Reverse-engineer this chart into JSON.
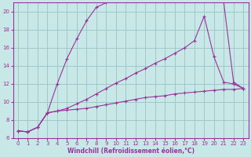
{
  "xlabel": "Windchill (Refroidissement éolien,°C)",
  "bg_color": "#c8e8e8",
  "grid_color": "#a0c8c8",
  "line_color": "#993399",
  "xlim": [
    -0.5,
    23.5
  ],
  "ylim": [
    6,
    21
  ],
  "xticks": [
    0,
    1,
    2,
    3,
    4,
    5,
    6,
    7,
    8,
    9,
    10,
    11,
    12,
    13,
    14,
    15,
    16,
    17,
    18,
    19,
    20,
    21,
    22,
    23
  ],
  "yticks": [
    6,
    8,
    10,
    12,
    14,
    16,
    18,
    20
  ],
  "line1_x": [
    0,
    1,
    2,
    3,
    4,
    5,
    6,
    7,
    8,
    9,
    10,
    11,
    12,
    13,
    14,
    15,
    16,
    17,
    18,
    19,
    20,
    21,
    22,
    23
  ],
  "line1_y": [
    6.8,
    6.7,
    7.2,
    8.8,
    9.0,
    9.1,
    9.2,
    9.3,
    9.5,
    9.7,
    9.9,
    10.1,
    10.3,
    10.5,
    10.6,
    10.7,
    10.9,
    11.0,
    11.1,
    11.2,
    11.3,
    11.4,
    11.4,
    11.5
  ],
  "line2_x": [
    0,
    1,
    2,
    3,
    4,
    5,
    6,
    7,
    8,
    9,
    10,
    11,
    12,
    13,
    14,
    15,
    16,
    17,
    18,
    19,
    20,
    21,
    22,
    23
  ],
  "line2_y": [
    6.8,
    6.7,
    7.2,
    8.8,
    9.0,
    9.3,
    9.8,
    10.3,
    10.9,
    11.5,
    12.1,
    12.6,
    13.2,
    13.7,
    14.3,
    14.8,
    15.4,
    16.0,
    16.8,
    19.5,
    15.0,
    12.2,
    12.0,
    11.5
  ],
  "line3_x": [
    0,
    1,
    2,
    3,
    4,
    5,
    6,
    7,
    8,
    9,
    10,
    11,
    12,
    13,
    14,
    15,
    16,
    17,
    18,
    19,
    20,
    21,
    22,
    23
  ],
  "line3_y": [
    6.8,
    6.7,
    7.2,
    8.8,
    12.0,
    14.8,
    17.0,
    19.0,
    20.5,
    21.0,
    21.3,
    21.3,
    21.3,
    21.4,
    21.4,
    21.4,
    21.4,
    21.3,
    21.3,
    21.3,
    21.2,
    21.0,
    12.2,
    11.5
  ]
}
